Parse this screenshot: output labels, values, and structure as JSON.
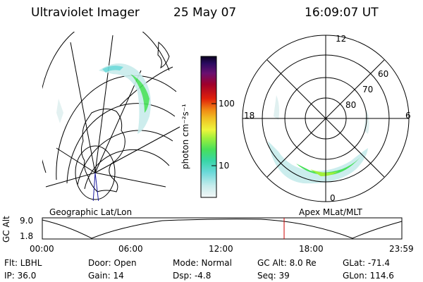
{
  "header": {
    "instrument": "Ultraviolet Imager",
    "date": "25 May 07",
    "time": "16:09:07 UT"
  },
  "colorbar": {
    "unit_label": "photon cm⁻²s⁻¹",
    "ticks": [
      "100",
      "10"
    ]
  },
  "panels": {
    "left_label": "Geographic Lat/Lon",
    "right_label": "Apex MLat/MLT",
    "polar_mlt_labels": {
      "top": "12",
      "left": "18",
      "right": "6",
      "bottom": "0"
    },
    "polar_lat_labels": [
      "60",
      "70",
      "80"
    ]
  },
  "gc_alt_plot": {
    "ylabel": "GC Alt",
    "y_ticks": [
      "9.0",
      "1.8"
    ],
    "x_ticks": [
      "00:00",
      "06:00",
      "12:00",
      "18:00",
      "23:59"
    ],
    "current_marker_color": "#cc0000"
  },
  "status": {
    "flt": "Flt: LBHL",
    "ip": "IP: 36.0",
    "door": "Door: Open",
    "gain": "Gain: 14",
    "mode": "Mode:  Normal",
    "dsp": "Dsp:    -4.8",
    "gcalt": "GC Alt: 8.0 Re",
    "seq": "Seq: 39",
    "glat": "GLat: -71.4",
    "glon": "GLon: 114.6"
  }
}
